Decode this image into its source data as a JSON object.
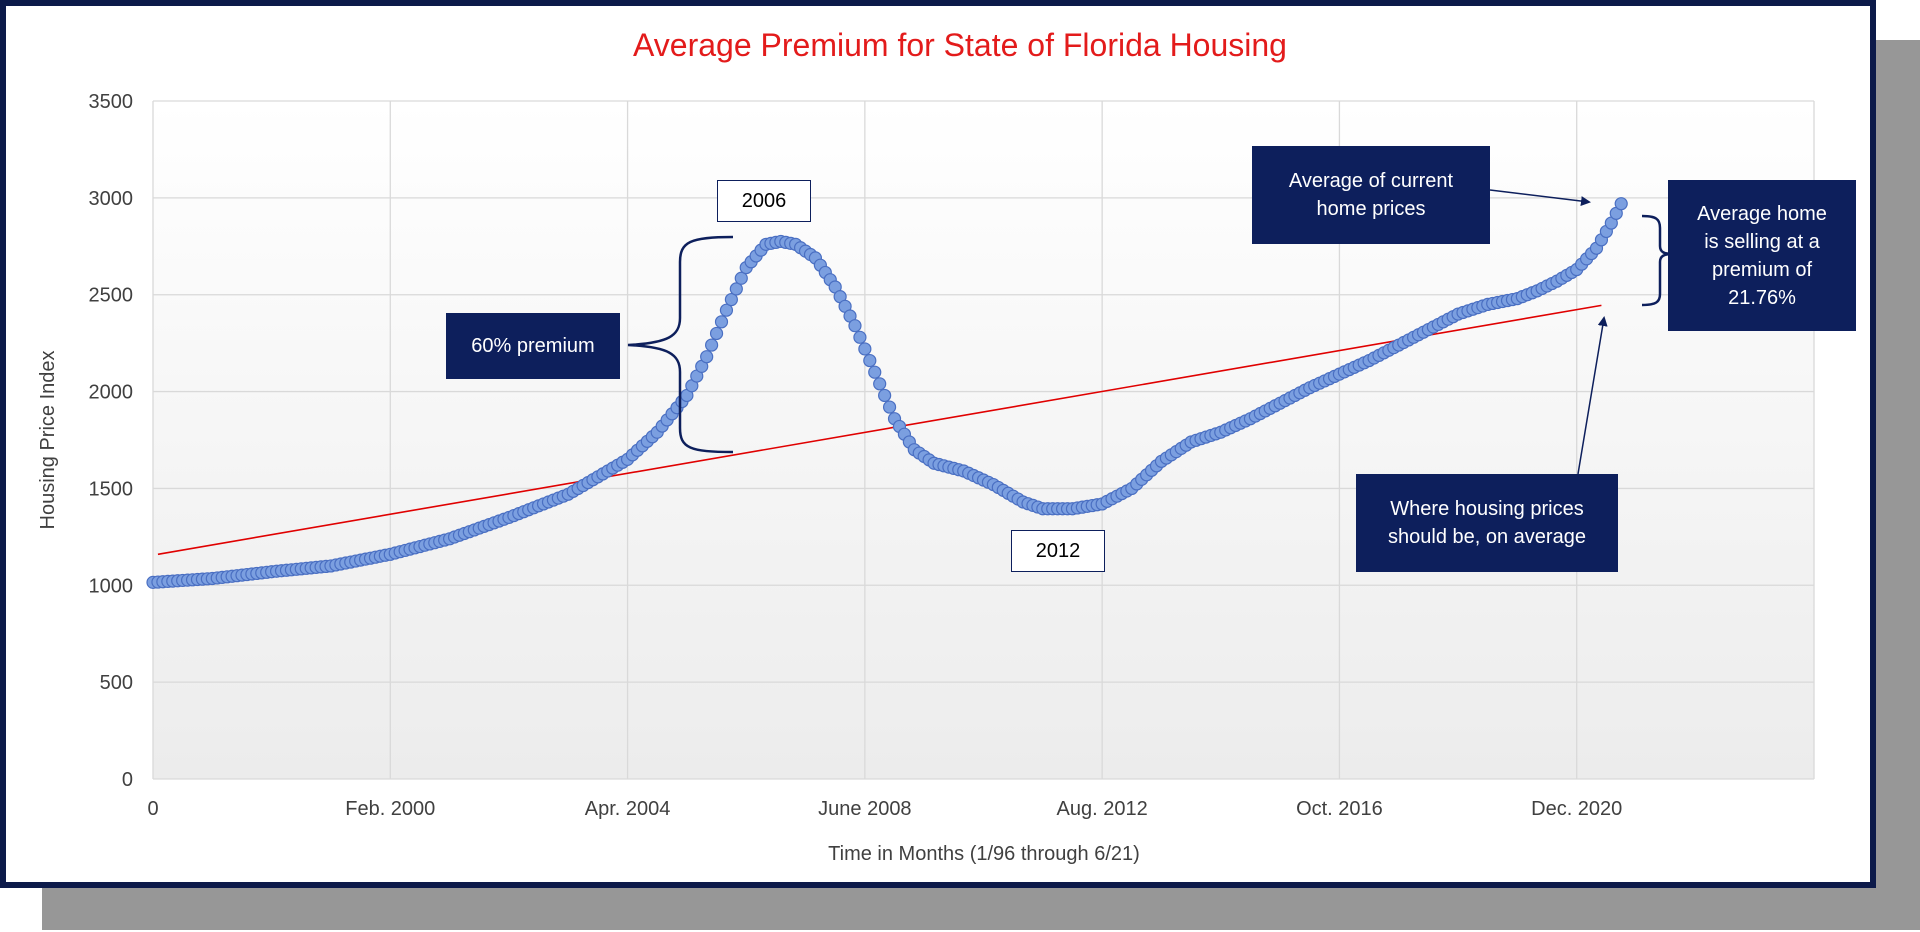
{
  "chart_data": {
    "type": "scatter",
    "title": "Average Premium for State of Florida Housing",
    "xlabel": "Time in Months (1/96 through 6/21)",
    "ylabel": "Housing Price Index",
    "ylim": [
      0,
      3500
    ],
    "xlim": [
      0,
      336
    ],
    "yticks": [
      0,
      500,
      1000,
      1500,
      2000,
      2500,
      3000,
      3500
    ],
    "xticks": [
      {
        "month": 0,
        "label": "0"
      },
      {
        "month": 48,
        "label": "Feb. 2000"
      },
      {
        "month": 96,
        "label": "Apr. 2004"
      },
      {
        "month": 144,
        "label": "June 2008"
      },
      {
        "month": 192,
        "label": "Aug. 2012"
      },
      {
        "month": 240,
        "label": "Oct. 2016"
      },
      {
        "month": 288,
        "label": "Dec. 2020"
      }
    ],
    "series": [
      {
        "name": "Housing Price Index",
        "color": "#7b9fe0",
        "edge_color": "#4a6fc2",
        "control_points": [
          [
            0,
            1015
          ],
          [
            12,
            1035
          ],
          [
            24,
            1070
          ],
          [
            36,
            1100
          ],
          [
            48,
            1160
          ],
          [
            60,
            1240
          ],
          [
            72,
            1350
          ],
          [
            84,
            1470
          ],
          [
            96,
            1650
          ],
          [
            102,
            1790
          ],
          [
            108,
            1980
          ],
          [
            112,
            2180
          ],
          [
            116,
            2420
          ],
          [
            120,
            2640
          ],
          [
            124,
            2760
          ],
          [
            127,
            2775
          ],
          [
            130,
            2760
          ],
          [
            134,
            2690
          ],
          [
            138,
            2540
          ],
          [
            142,
            2340
          ],
          [
            146,
            2100
          ],
          [
            150,
            1860
          ],
          [
            154,
            1700
          ],
          [
            158,
            1630
          ],
          [
            164,
            1590
          ],
          [
            170,
            1520
          ],
          [
            176,
            1430
          ],
          [
            180,
            1395
          ],
          [
            186,
            1395
          ],
          [
            192,
            1420
          ],
          [
            198,
            1500
          ],
          [
            204,
            1640
          ],
          [
            210,
            1740
          ],
          [
            216,
            1790
          ],
          [
            222,
            1860
          ],
          [
            228,
            1940
          ],
          [
            234,
            2020
          ],
          [
            240,
            2090
          ],
          [
            246,
            2160
          ],
          [
            252,
            2240
          ],
          [
            258,
            2320
          ],
          [
            264,
            2400
          ],
          [
            270,
            2450
          ],
          [
            276,
            2480
          ],
          [
            280,
            2520
          ],
          [
            284,
            2570
          ],
          [
            288,
            2630
          ],
          [
            292,
            2740
          ],
          [
            295,
            2870
          ],
          [
            297,
            2970
          ]
        ]
      },
      {
        "name": "Trend line",
        "color": "#e00000",
        "type": "line",
        "points": [
          [
            1,
            1160
          ],
          [
            293,
            2445
          ]
        ]
      }
    ],
    "annotations": {
      "current_avg": "Average of current home prices",
      "should_be": "Where housing prices should be, on average",
      "premium_note": "Average home is selling at a premium of 21.76%",
      "premium_60": "60% premium",
      "year_peak": "2006",
      "year_trough": "2012"
    }
  },
  "colors": {
    "title": "#e31b1b",
    "frame": "#0c1a4a",
    "box": "#0d1f5c",
    "grid": "#d9d9d9",
    "bracket": "#0d1f5c"
  }
}
